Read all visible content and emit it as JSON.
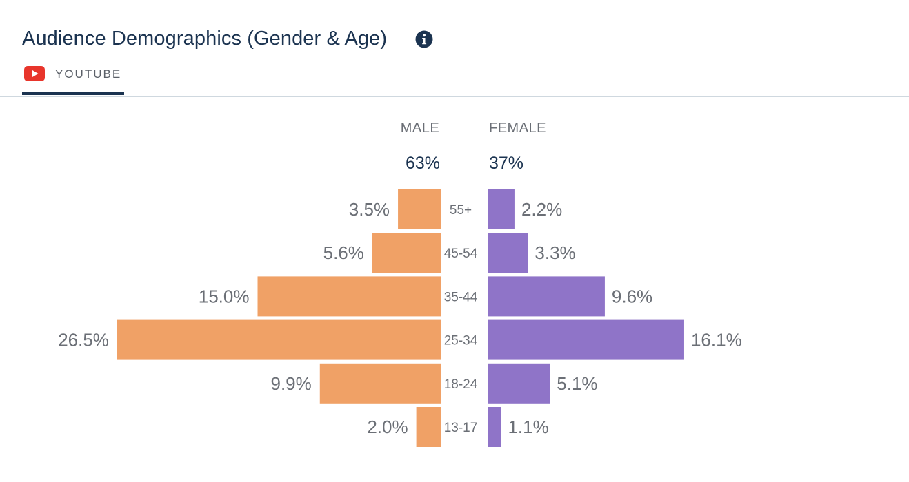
{
  "header": {
    "title": "Audience Demographics (Gender & Age)"
  },
  "tabs": [
    {
      "label": "YOUTUBE",
      "icon": "youtube-icon",
      "active": true
    }
  ],
  "colors": {
    "male": "#f0a166",
    "female": "#8f74c8",
    "title": "#1b3350",
    "label": "#6b6f76",
    "youtube_red": "#e8352b"
  },
  "chart_data": {
    "type": "bar",
    "orientation": "horizontal-pyramid",
    "title": "Audience Demographics (Gender & Age)",
    "categories": [
      "55+",
      "45-54",
      "35-44",
      "25-34",
      "18-24",
      "13-17"
    ],
    "series": [
      {
        "name": "MALE",
        "total_label": "63%",
        "values": [
          3.5,
          5.6,
          15.0,
          26.5,
          9.9,
          2.0
        ],
        "value_labels": [
          "3.5%",
          "5.6%",
          "15.0%",
          "26.5%",
          "9.9%",
          "2.0%"
        ]
      },
      {
        "name": "FEMALE",
        "total_label": "37%",
        "values": [
          2.2,
          3.3,
          9.6,
          16.1,
          5.1,
          1.1
        ],
        "value_labels": [
          "2.2%",
          "3.3%",
          "9.6%",
          "16.1%",
          "5.1%",
          "1.1%"
        ]
      }
    ],
    "unit": "%"
  }
}
